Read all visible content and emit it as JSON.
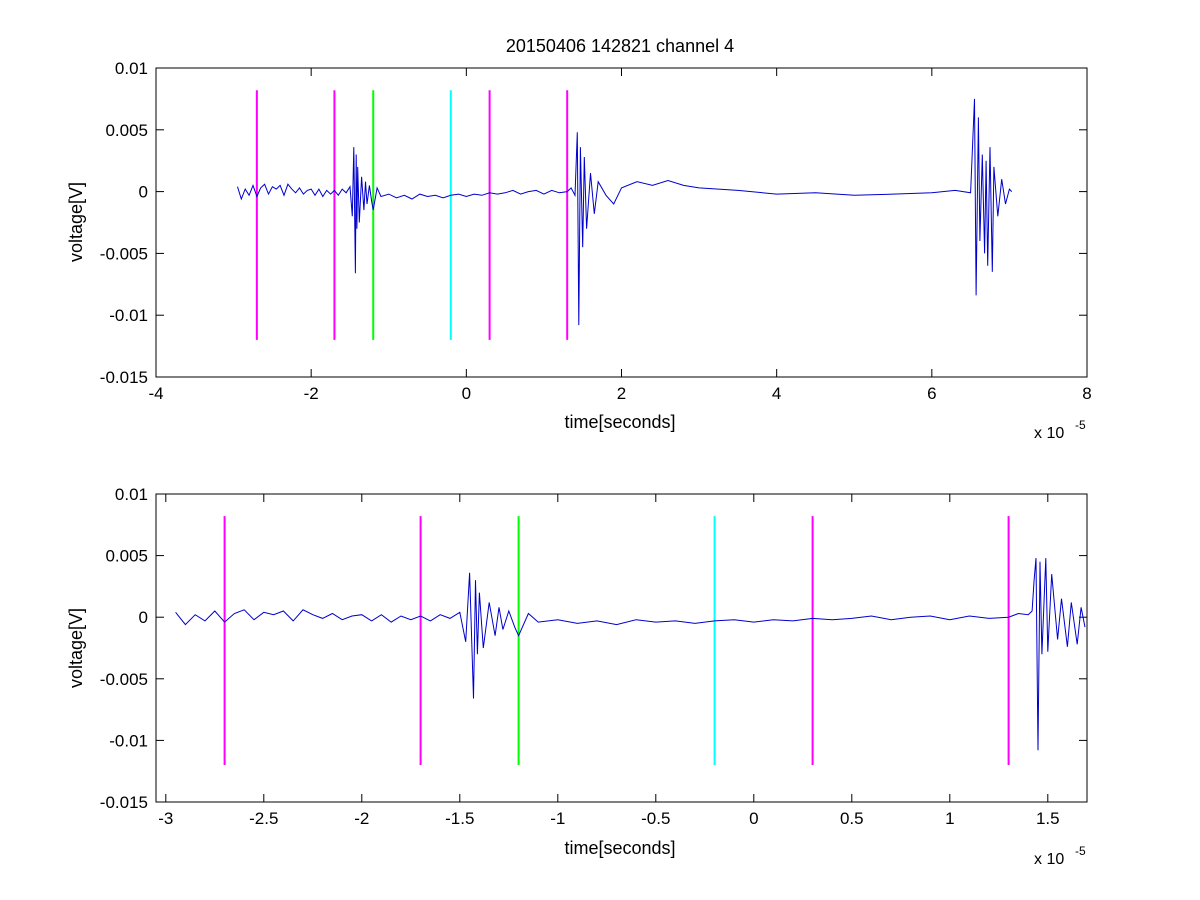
{
  "figure": {
    "title": "20150406 142821 channel 4",
    "background": "#ffffff"
  },
  "chart_data": [
    {
      "type": "line",
      "panel": "top",
      "title": "20150406 142821 channel 4",
      "xlabel": "time[seconds]",
      "ylabel": "voltage[V]",
      "x_multiplier_label": "x 10",
      "x_multiplier_exponent": "-5",
      "xlim": [
        -4,
        8
      ],
      "ylim": [
        -0.015,
        0.01
      ],
      "xticks": [
        -4,
        -2,
        0,
        2,
        4,
        6,
        8
      ],
      "xtick_labels": [
        "-4",
        "-2",
        "0",
        "2",
        "4",
        "6",
        "8"
      ],
      "yticks": [
        0.01,
        0.005,
        0,
        -0.005,
        -0.01,
        -0.015
      ],
      "ytick_labels": [
        "0.01",
        "0.005",
        "0",
        "-0.005",
        "-0.01",
        "-0.015"
      ],
      "grid": false,
      "legend": "none",
      "markers": [
        {
          "x": -2.7,
          "color": "#ff00ff"
        },
        {
          "x": -1.7,
          "color": "#ff00ff"
        },
        {
          "x": -1.2,
          "color": "#00ff00"
        },
        {
          "x": -0.2,
          "color": "#00ffff"
        },
        {
          "x": 0.3,
          "color": "#ff00ff"
        },
        {
          "x": 1.3,
          "color": "#ff00ff"
        }
      ],
      "marker_y_range": [
        -0.012,
        0.0082
      ],
      "series": [
        {
          "color": "#0000cc",
          "x": [
            -2.95,
            -2.9,
            -2.85,
            -2.8,
            -2.75,
            -2.7,
            -2.65,
            -2.6,
            -2.55,
            -2.5,
            -2.45,
            -2.4,
            -2.35,
            -2.3,
            -2.25,
            -2.2,
            -2.15,
            -2.1,
            -2.05,
            -2.0,
            -1.95,
            -1.9,
            -1.85,
            -1.8,
            -1.75,
            -1.7,
            -1.65,
            -1.6,
            -1.55,
            -1.5,
            -1.47,
            -1.45,
            -1.43,
            -1.42,
            -1.41,
            -1.4,
            -1.38,
            -1.35,
            -1.32,
            -1.3,
            -1.28,
            -1.25,
            -1.22,
            -1.2,
            -1.15,
            -1.1,
            -1.0,
            -0.9,
            -0.8,
            -0.7,
            -0.6,
            -0.5,
            -0.4,
            -0.3,
            -0.2,
            -0.1,
            0.0,
            0.1,
            0.2,
            0.3,
            0.4,
            0.5,
            0.6,
            0.7,
            0.8,
            0.9,
            1.0,
            1.1,
            1.2,
            1.3,
            1.35,
            1.4,
            1.43,
            1.45,
            1.47,
            1.5,
            1.52,
            1.55,
            1.6,
            1.65,
            1.7,
            1.8,
            1.9,
            2.0,
            2.2,
            2.4,
            2.6,
            2.8,
            3.0,
            3.5,
            4.0,
            4.5,
            5.0,
            5.5,
            6.0,
            6.3,
            6.5,
            6.55,
            6.57,
            6.6,
            6.62,
            6.65,
            6.68,
            6.7,
            6.72,
            6.75,
            6.78,
            6.8,
            6.85,
            6.9,
            6.95,
            7.0,
            7.03
          ],
          "y": [
            0.0004,
            -0.0006,
            0.0002,
            -0.0003,
            0.0005,
            -0.0004,
            0.0003,
            0.0006,
            -0.0002,
            0.0004,
            0.0002,
            0.0005,
            -0.0003,
            0.0006,
            0.0002,
            -0.0001,
            0.0003,
            -0.0002,
            0.0001,
            0.0002,
            -0.0003,
            0.0002,
            -0.0004,
            0.0001,
            -0.0002,
            0.0001,
            -0.0003,
            0.0002,
            -0.0001,
            0.0004,
            -0.002,
            0.0036,
            -0.0066,
            0.003,
            -0.003,
            0.002,
            -0.0025,
            0.0012,
            -0.0015,
            0.0008,
            -0.001,
            0.0005,
            -0.0008,
            -0.0015,
            0.0003,
            -0.0004,
            -0.0002,
            -0.0005,
            -0.0003,
            -0.0006,
            -0.0002,
            -0.0004,
            -0.0003,
            -0.0005,
            -0.0003,
            -0.0002,
            -0.0004,
            -0.0002,
            -0.0003,
            -0.0001,
            -0.0002,
            -0.0001,
            0.0001,
            -0.0002,
            0.0,
            0.0001,
            -0.0002,
            0.0001,
            -0.0001,
            0.0,
            0.0003,
            -0.0003,
            0.0048,
            -0.0108,
            0.0036,
            -0.0045,
            0.0028,
            -0.003,
            0.0015,
            -0.0018,
            0.0008,
            -0.0003,
            -0.001,
            0.0003,
            0.0008,
            0.0005,
            0.0009,
            0.0005,
            0.0003,
            0.0001,
            -0.0002,
            -0.0001,
            -0.0003,
            -0.0002,
            -0.0001,
            0.0001,
            -0.0001,
            0.0075,
            -0.0084,
            0.006,
            -0.004,
            0.003,
            -0.005,
            0.0025,
            -0.006,
            0.0036,
            -0.0065,
            0.002,
            -0.002,
            0.001,
            -0.001,
            0.0002,
            0.0
          ]
        }
      ]
    },
    {
      "type": "line",
      "panel": "bottom",
      "title": "",
      "xlabel": "time[seconds]",
      "ylabel": "voltage[V]",
      "x_multiplier_label": "x 10",
      "x_multiplier_exponent": "-5",
      "xlim": [
        -3.05,
        1.7
      ],
      "ylim": [
        -0.015,
        0.01
      ],
      "xticks": [
        -3,
        -2.5,
        -2,
        -1.5,
        -1,
        -0.5,
        0,
        0.5,
        1,
        1.5
      ],
      "xtick_labels": [
        "-3",
        "-2.5",
        "-2",
        "-1.5",
        "-1",
        "-0.5",
        "0",
        "0.5",
        "1",
        "1.5"
      ],
      "yticks": [
        0.01,
        0.005,
        0,
        -0.005,
        -0.01,
        -0.015
      ],
      "ytick_labels": [
        "0.01",
        "0.005",
        "0",
        "-0.005",
        "-0.01",
        "-0.015"
      ],
      "grid": false,
      "legend": "none",
      "markers": [
        {
          "x": -2.7,
          "color": "#ff00ff"
        },
        {
          "x": -1.7,
          "color": "#ff00ff"
        },
        {
          "x": -1.2,
          "color": "#00ff00"
        },
        {
          "x": -0.2,
          "color": "#00ffff"
        },
        {
          "x": 0.3,
          "color": "#ff00ff"
        },
        {
          "x": 1.3,
          "color": "#ff00ff"
        }
      ],
      "marker_y_range": [
        -0.012,
        0.0082
      ],
      "series": [
        {
          "color": "#0000cc",
          "x": [
            -2.95,
            -2.9,
            -2.85,
            -2.8,
            -2.75,
            -2.7,
            -2.65,
            -2.6,
            -2.55,
            -2.5,
            -2.45,
            -2.4,
            -2.35,
            -2.3,
            -2.25,
            -2.2,
            -2.15,
            -2.1,
            -2.05,
            -2.0,
            -1.95,
            -1.9,
            -1.85,
            -1.8,
            -1.75,
            -1.7,
            -1.65,
            -1.6,
            -1.55,
            -1.5,
            -1.47,
            -1.45,
            -1.43,
            -1.42,
            -1.41,
            -1.4,
            -1.38,
            -1.35,
            -1.32,
            -1.3,
            -1.28,
            -1.25,
            -1.22,
            -1.2,
            -1.15,
            -1.1,
            -1.0,
            -0.9,
            -0.8,
            -0.7,
            -0.6,
            -0.5,
            -0.4,
            -0.3,
            -0.2,
            -0.1,
            0.0,
            0.1,
            0.2,
            0.3,
            0.4,
            0.5,
            0.6,
            0.7,
            0.8,
            0.9,
            1.0,
            1.1,
            1.2,
            1.3,
            1.35,
            1.4,
            1.42,
            1.43,
            1.44,
            1.45,
            1.46,
            1.47,
            1.49,
            1.5,
            1.52,
            1.55,
            1.57,
            1.6,
            1.62,
            1.65,
            1.67,
            1.69
          ],
          "y": [
            0.0004,
            -0.0006,
            0.0002,
            -0.0003,
            0.0005,
            -0.0004,
            0.0003,
            0.0006,
            -0.0002,
            0.0004,
            0.0002,
            0.0005,
            -0.0003,
            0.0006,
            0.0002,
            -0.0001,
            0.0003,
            -0.0002,
            0.0001,
            0.0002,
            -0.0003,
            0.0002,
            -0.0004,
            0.0001,
            -0.0002,
            0.0001,
            -0.0003,
            0.0002,
            -0.0001,
            0.0004,
            -0.002,
            0.0036,
            -0.0066,
            0.003,
            -0.003,
            0.002,
            -0.0025,
            0.0012,
            -0.0015,
            0.0008,
            -0.001,
            0.0005,
            -0.0008,
            -0.0015,
            0.0003,
            -0.0004,
            -0.0002,
            -0.0005,
            -0.0003,
            -0.0006,
            -0.0002,
            -0.0004,
            -0.0003,
            -0.0005,
            -0.0003,
            -0.0002,
            -0.0004,
            -0.0002,
            -0.0003,
            -0.0001,
            -0.0002,
            -0.0001,
            0.0001,
            -0.0002,
            0.0,
            0.0001,
            -0.0002,
            0.0001,
            -0.0001,
            0.0,
            0.0003,
            0.0002,
            0.0005,
            0.003,
            0.0048,
            -0.0108,
            0.0045,
            -0.003,
            0.0048,
            -0.0028,
            0.0035,
            -0.0018,
            0.0015,
            -0.0024,
            0.0012,
            -0.0022,
            0.0008,
            -0.0008
          ]
        }
      ]
    }
  ]
}
